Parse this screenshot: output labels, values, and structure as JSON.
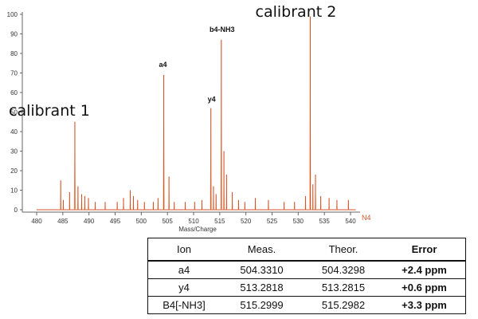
{
  "chart_data": {
    "type": "line",
    "title": "",
    "xlabel": "Mass/Charge",
    "ylabel": "",
    "xlim": [
      480,
      541
    ],
    "ylim": [
      0,
      100
    ],
    "xticks": [
      480,
      485,
      490,
      495,
      500,
      505,
      510,
      515,
      520,
      525,
      530,
      535,
      540
    ],
    "yticks": [
      0,
      10,
      20,
      30,
      40,
      50,
      60,
      70,
      80,
      90,
      100
    ],
    "grid": false,
    "trace_tag": "N4",
    "series_color": "#d2552a",
    "peaks": [
      {
        "x": 484.6,
        "y": 15
      },
      {
        "x": 485.1,
        "y": 5
      },
      {
        "x": 486.3,
        "y": 9
      },
      {
        "x": 487.3,
        "y": 45
      },
      {
        "x": 487.9,
        "y": 12
      },
      {
        "x": 488.6,
        "y": 8
      },
      {
        "x": 489.2,
        "y": 7
      },
      {
        "x": 489.9,
        "y": 6
      },
      {
        "x": 491.2,
        "y": 4
      },
      {
        "x": 493.1,
        "y": 4
      },
      {
        "x": 495.4,
        "y": 4
      },
      {
        "x": 496.6,
        "y": 6
      },
      {
        "x": 497.9,
        "y": 10
      },
      {
        "x": 498.5,
        "y": 7
      },
      {
        "x": 499.3,
        "y": 5
      },
      {
        "x": 500.6,
        "y": 4
      },
      {
        "x": 502.3,
        "y": 4
      },
      {
        "x": 503.2,
        "y": 6
      },
      {
        "x": 504.3,
        "y": 69
      },
      {
        "x": 505.3,
        "y": 17
      },
      {
        "x": 506.3,
        "y": 4
      },
      {
        "x": 508.4,
        "y": 4
      },
      {
        "x": 510.2,
        "y": 4
      },
      {
        "x": 511.6,
        "y": 5
      },
      {
        "x": 513.3,
        "y": 52
      },
      {
        "x": 513.8,
        "y": 12
      },
      {
        "x": 514.3,
        "y": 8
      },
      {
        "x": 515.3,
        "y": 87
      },
      {
        "x": 515.8,
        "y": 30
      },
      {
        "x": 516.3,
        "y": 18
      },
      {
        "x": 517.4,
        "y": 9
      },
      {
        "x": 518.6,
        "y": 5
      },
      {
        "x": 519.8,
        "y": 4
      },
      {
        "x": 521.8,
        "y": 6
      },
      {
        "x": 524.3,
        "y": 5
      },
      {
        "x": 527.3,
        "y": 4
      },
      {
        "x": 529.3,
        "y": 4
      },
      {
        "x": 531.4,
        "y": 7
      },
      {
        "x": 532.3,
        "y": 99
      },
      {
        "x": 532.8,
        "y": 13
      },
      {
        "x": 533.3,
        "y": 18
      },
      {
        "x": 534.3,
        "y": 7
      },
      {
        "x": 535.9,
        "y": 6
      },
      {
        "x": 537.4,
        "y": 5
      },
      {
        "x": 539.6,
        "y": 5
      }
    ],
    "annotations": [
      {
        "text": "calibrant 1",
        "x": 487.3,
        "y": 45,
        "style": "large"
      },
      {
        "text": "a4",
        "x": 504.3,
        "y": 69,
        "style": "small"
      },
      {
        "text": "y4",
        "x": 513.3,
        "y": 52,
        "style": "small"
      },
      {
        "text": "b4-NH3",
        "x": 515.3,
        "y": 87,
        "style": "small"
      },
      {
        "text": "calibrant 2",
        "x": 532.3,
        "y": 99,
        "style": "large"
      }
    ]
  },
  "table": {
    "headers": [
      "Ion",
      "Meas.",
      "Theor.",
      "Error"
    ],
    "rows": [
      [
        "a4",
        "504.3310",
        "504.3298",
        "+2.4 ppm"
      ],
      [
        "y4",
        "513.2818",
        "513.2815",
        "+0.6 ppm"
      ],
      [
        "B4[-NH3]",
        "515.2999",
        "515.2982",
        "+3.3 ppm"
      ]
    ]
  }
}
